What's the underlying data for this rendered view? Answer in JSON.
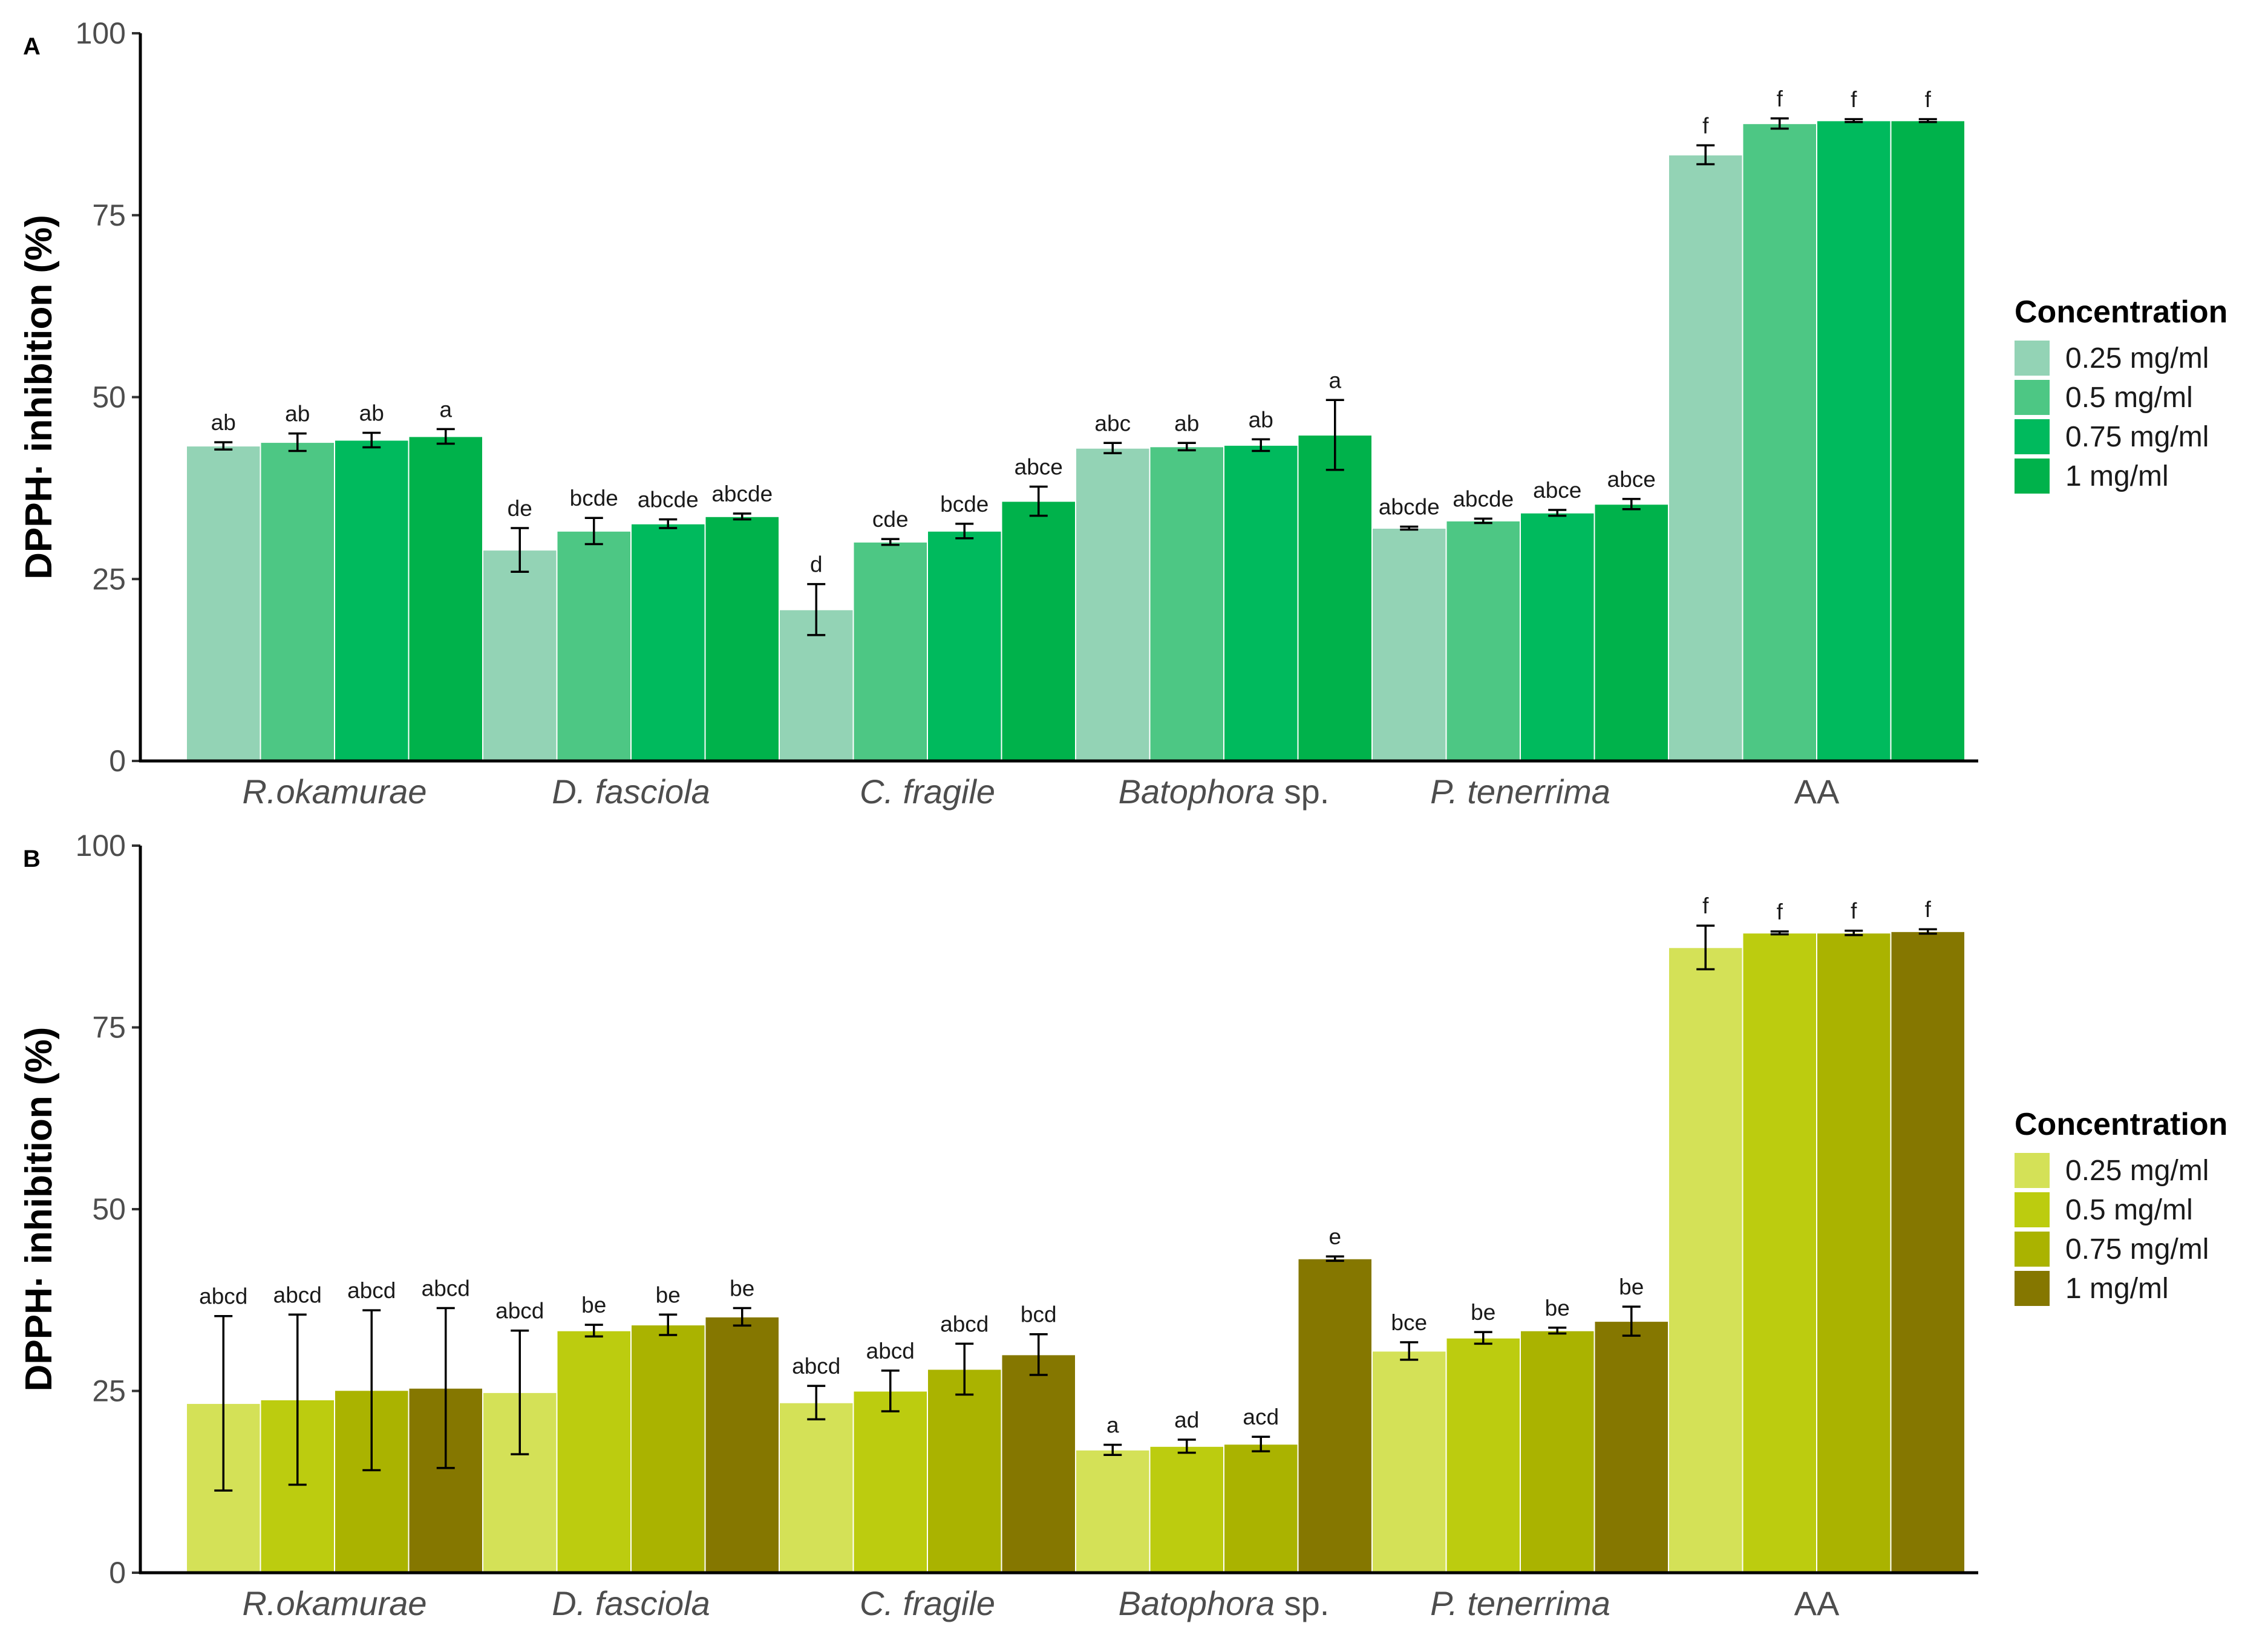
{
  "legend": {
    "title": "Concentration",
    "entries": [
      "0.25 mg/ml",
      "0.5 mg/ml",
      "0.75 mg/ml",
      "1 mg/ml"
    ]
  },
  "chart_data": [
    {
      "type": "bar",
      "panel_label": "A",
      "ylabel": "DPPH· inhibition (%)",
      "xlabel": "",
      "ylim": [
        0,
        100
      ],
      "yticks": [
        "0",
        "25",
        "50",
        "75",
        "100"
      ],
      "grid": false,
      "legend_position": "right",
      "categories": [
        {
          "name": "R.okamurae",
          "italic": "R.okamurae",
          "plain": ""
        },
        {
          "name": "D. fasciola",
          "italic": "D. fasciola",
          "plain": ""
        },
        {
          "name": "C. fragile",
          "italic": "C. fragile",
          "plain": ""
        },
        {
          "name": "Batophora sp.",
          "italic": "Batophora",
          "plain": " sp."
        },
        {
          "name": "P. tenerrima",
          "italic": "P. tenerrima",
          "plain": ""
        },
        {
          "name": "AA",
          "italic": "",
          "plain": "AA"
        }
      ],
      "colors": [
        "#93d3b5",
        "#4dc784",
        "#00ba5d",
        "#00b24b"
      ],
      "series": [
        {
          "name": "0.25 mg/ml",
          "values": [
            43.3,
            29.0,
            20.8,
            43.0,
            32.0,
            83.3
          ],
          "errors": [
            0.5,
            3.0,
            3.5,
            0.7,
            0.2,
            1.3
          ],
          "labels": [
            "ab",
            "de",
            "d",
            "abc",
            "abcde",
            "f"
          ]
        },
        {
          "name": "0.5 mg/ml",
          "values": [
            43.8,
            31.6,
            30.1,
            43.2,
            33.0,
            87.6
          ],
          "errors": [
            1.2,
            1.8,
            0.4,
            0.5,
            0.3,
            0.7
          ],
          "labels": [
            "ab",
            "bcde",
            "cde",
            "ab",
            "abcde",
            "f"
          ]
        },
        {
          "name": "0.75 mg/ml",
          "values": [
            44.1,
            32.6,
            31.6,
            43.4,
            34.1,
            88.0
          ],
          "errors": [
            1.0,
            0.6,
            1.0,
            0.8,
            0.4,
            0.2
          ],
          "labels": [
            "ab",
            "abcde",
            "bcde",
            "ab",
            "abce",
            "f"
          ]
        },
        {
          "name": "1 mg/ml",
          "values": [
            44.6,
            33.6,
            35.7,
            44.8,
            35.3,
            88.0
          ],
          "errors": [
            1.0,
            0.4,
            2.0,
            4.8,
            0.7,
            0.2
          ],
          "labels": [
            "a",
            "abcde",
            "abce",
            "a",
            "abce",
            "f"
          ]
        }
      ]
    },
    {
      "type": "bar",
      "panel_label": "B",
      "ylabel": "DPPH· inhibition (%)",
      "xlabel": "",
      "ylim": [
        0,
        100
      ],
      "yticks": [
        "0",
        "25",
        "50",
        "75",
        "100"
      ],
      "grid": false,
      "legend_position": "right",
      "categories": [
        {
          "name": "R.okamurae",
          "italic": "R.okamurae",
          "plain": ""
        },
        {
          "name": "D. fasciola",
          "italic": "D. fasciola",
          "plain": ""
        },
        {
          "name": "C. fragile",
          "italic": "C. fragile",
          "plain": ""
        },
        {
          "name": "Batophora sp.",
          "italic": "Batophora",
          "plain": " sp."
        },
        {
          "name": "P. tenerrima",
          "italic": "P. tenerrima",
          "plain": ""
        },
        {
          "name": "AA",
          "italic": "",
          "plain": "AA"
        }
      ],
      "colors": [
        "#d4e157",
        "#bccc0f",
        "#aab300",
        "#857700"
      ],
      "series": [
        {
          "name": "0.25 mg/ml",
          "values": [
            23.3,
            24.8,
            23.4,
            16.9,
            30.5,
            86.0
          ],
          "errors": [
            12.0,
            8.5,
            2.3,
            0.7,
            1.2,
            3.0
          ],
          "labels": [
            "abcd",
            "abcd",
            "abcd",
            "a",
            "bce",
            "f"
          ]
        },
        {
          "name": "0.5 mg/ml",
          "values": [
            23.8,
            33.3,
            25.0,
            17.4,
            32.3,
            88.0
          ],
          "errors": [
            11.7,
            0.8,
            2.8,
            0.9,
            0.8,
            0.2
          ],
          "labels": [
            "abcd",
            "be",
            "abcd",
            "ad",
            "be",
            "f"
          ]
        },
        {
          "name": "0.75 mg/ml",
          "values": [
            25.1,
            34.1,
            28.0,
            17.7,
            33.3,
            88.0
          ],
          "errors": [
            11.0,
            1.4,
            3.5,
            1.0,
            0.4,
            0.3
          ],
          "labels": [
            "abcd",
            "be",
            "abcd",
            "acd",
            "be",
            "f"
          ]
        },
        {
          "name": "1 mg/ml",
          "values": [
            25.4,
            35.2,
            30.0,
            43.2,
            34.6,
            88.2
          ],
          "errors": [
            11.0,
            1.2,
            2.8,
            0.3,
            2.0,
            0.3
          ],
          "labels": [
            "abcd",
            "be",
            "bcd",
            "e",
            "be",
            "f"
          ]
        }
      ]
    }
  ]
}
